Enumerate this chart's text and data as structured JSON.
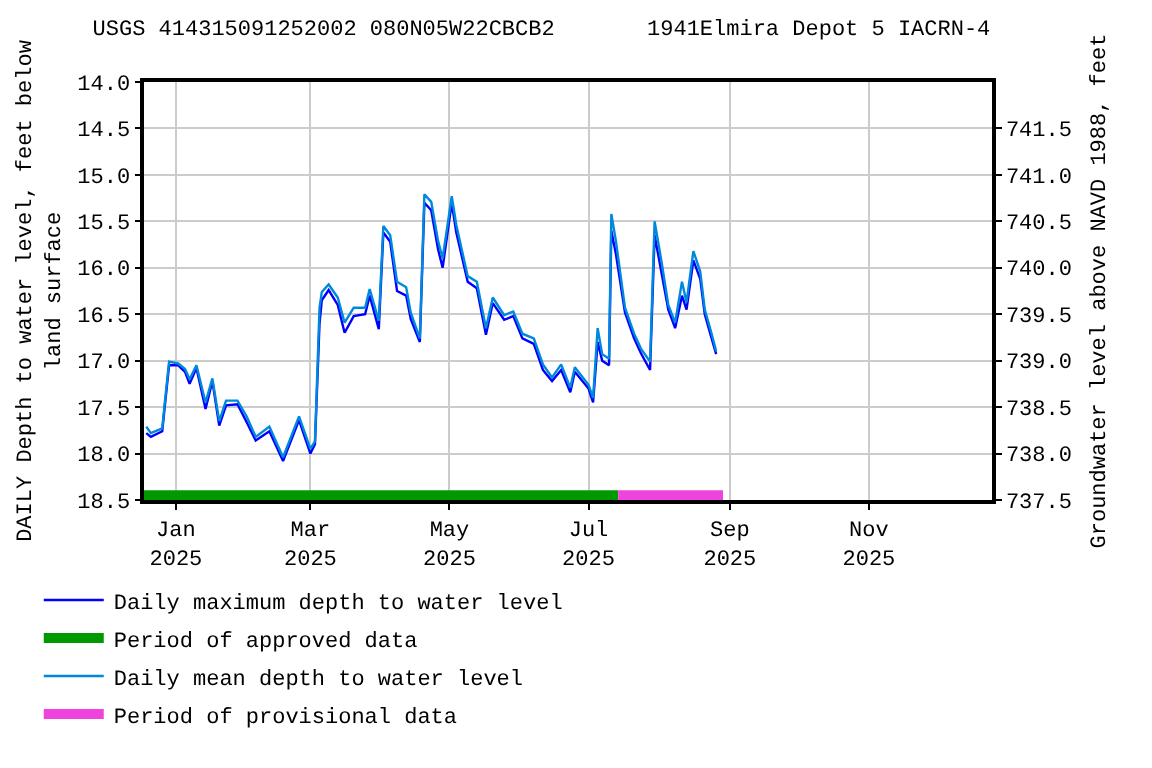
{
  "chart_data": {
    "type": "line",
    "title": "USGS 414315091252002 080N05W22CBCB2       1941Elmira Depot 5 IACRN-4",
    "ylabel": "DAILY Depth to water level, feet below\nland surface",
    "y2label": "Groundwater level above NAVD 1988, feet",
    "xlim": [
      "2024-12-18",
      "2025-12-25"
    ],
    "xticks": [
      {
        "value": "2025-01-01",
        "label": "Jan\n2025"
      },
      {
        "value": "2025-03-01",
        "label": "Mar\n2025"
      },
      {
        "value": "2025-05-01",
        "label": "May\n2025"
      },
      {
        "value": "2025-07-01",
        "label": "Jul\n2025"
      },
      {
        "value": "2025-09-01",
        "label": "Sep\n2025"
      },
      {
        "value": "2025-11-01",
        "label": "Nov\n2025"
      }
    ],
    "ylim": [
      18.5,
      14.0
    ],
    "yticks": [
      {
        "value": 14.0,
        "label": "14.0"
      },
      {
        "value": 14.5,
        "label": "14.5"
      },
      {
        "value": 15.0,
        "label": "15.0"
      },
      {
        "value": 15.5,
        "label": "15.5"
      },
      {
        "value": 16.0,
        "label": "16.0"
      },
      {
        "value": 16.5,
        "label": "16.5"
      },
      {
        "value": 17.0,
        "label": "17.0"
      },
      {
        "value": 17.5,
        "label": "17.5"
      },
      {
        "value": 18.0,
        "label": "18.0"
      },
      {
        "value": 18.5,
        "label": "18.5"
      }
    ],
    "y2lim": [
      737.5,
      742.0
    ],
    "y2ticks": [
      737.5,
      {
        "value": 738.0,
        "label": "738.0"
      },
      738.5,
      {
        "value": 739.0,
        "label": "739.0"
      },
      739.5,
      {
        "value": 740.0,
        "label": "740.0"
      },
      740.5,
      {
        "value": 741.0,
        "label": "741.0"
      },
      741.5
    ],
    "grid": true,
    "legend": "bottom",
    "marker": "none",
    "line_style": "solid",
    "series": [
      {
        "name": "Daily maximum depth to water level",
        "color": "#0000ff",
        "x": [
          "2024-12-19",
          "2024-12-21",
          "2024-12-26",
          "2024-12-27",
          "2024-12-29",
          "2025-01-02",
          "2025-01-05",
          "2025-01-07",
          "2025-01-10",
          "2025-01-14",
          "2025-01-17",
          "2025-01-20",
          "2025-01-23",
          "2025-01-28",
          "2025-02-01",
          "2025-02-05",
          "2025-02-11",
          "2025-02-17",
          "2025-02-24",
          "2025-03-01",
          "2025-03-03",
          "2025-03-05",
          "2025-03-06",
          "2025-03-09",
          "2025-03-13",
          "2025-03-16",
          "2025-03-20",
          "2025-03-25",
          "2025-03-27",
          "2025-03-31",
          "2025-04-02",
          "2025-04-05",
          "2025-04-08",
          "2025-04-12",
          "2025-04-14",
          "2025-04-18",
          "2025-04-20",
          "2025-04-23",
          "2025-04-26",
          "2025-04-28",
          "2025-05-02",
          "2025-05-04",
          "2025-05-09",
          "2025-05-13",
          "2025-05-17",
          "2025-05-20",
          "2025-05-25",
          "2025-05-29",
          "2025-06-02",
          "2025-06-07",
          "2025-06-11",
          "2025-06-15",
          "2025-06-19",
          "2025-06-23",
          "2025-06-25",
          "2025-07-01",
          "2025-07-03",
          "2025-07-05",
          "2025-07-07",
          "2025-07-10",
          "2025-07-11",
          "2025-07-13",
          "2025-07-17",
          "2025-07-21",
          "2025-07-24",
          "2025-07-28",
          "2025-07-30",
          "2025-08-02",
          "2025-08-05",
          "2025-08-08",
          "2025-08-11",
          "2025-08-13",
          "2025-08-16",
          "2025-08-19",
          "2025-08-21",
          "2025-08-24",
          "2025-08-26"
        ],
        "values": [
          17.78,
          17.82,
          17.76,
          17.52,
          17.05,
          17.05,
          17.12,
          17.25,
          17.08,
          17.52,
          17.22,
          17.7,
          17.48,
          17.47,
          17.66,
          17.86,
          17.76,
          18.08,
          17.64,
          18.0,
          17.9,
          16.6,
          16.35,
          16.24,
          16.4,
          16.7,
          16.52,
          16.5,
          16.3,
          16.66,
          15.62,
          15.72,
          16.25,
          16.3,
          16.55,
          16.8,
          15.3,
          15.38,
          15.8,
          16.0,
          15.3,
          15.62,
          16.15,
          16.22,
          16.72,
          16.38,
          16.56,
          16.52,
          16.76,
          16.82,
          17.1,
          17.22,
          17.1,
          17.34,
          17.12,
          17.3,
          17.45,
          16.8,
          17.0,
          17.05,
          15.6,
          15.85,
          16.48,
          16.76,
          16.92,
          17.1,
          15.65,
          16.05,
          16.45,
          16.65,
          16.3,
          16.45,
          15.92,
          16.12,
          16.5,
          16.76,
          16.93
        ]
      },
      {
        "name": "Period of approved data",
        "color": "#009900",
        "x": [
          "2024-12-18",
          "2025-07-14"
        ],
        "values": [
          18.45,
          18.45
        ]
      },
      {
        "name": "Daily mean depth to water level",
        "color": "#0088dd",
        "x": [
          "2024-12-19",
          "2024-12-21",
          "2024-12-26",
          "2024-12-27",
          "2024-12-29",
          "2025-01-02",
          "2025-01-05",
          "2025-01-07",
          "2025-01-10",
          "2025-01-14",
          "2025-01-17",
          "2025-01-20",
          "2025-01-23",
          "2025-01-28",
          "2025-02-01",
          "2025-02-05",
          "2025-02-11",
          "2025-02-17",
          "2025-02-24",
          "2025-03-01",
          "2025-03-03",
          "2025-03-05",
          "2025-03-06",
          "2025-03-09",
          "2025-03-13",
          "2025-03-16",
          "2025-03-20",
          "2025-03-25",
          "2025-03-27",
          "2025-03-31",
          "2025-04-02",
          "2025-04-05",
          "2025-04-08",
          "2025-04-12",
          "2025-04-14",
          "2025-04-18",
          "2025-04-20",
          "2025-04-23",
          "2025-04-26",
          "2025-04-28",
          "2025-05-02",
          "2025-05-04",
          "2025-05-09",
          "2025-05-13",
          "2025-05-17",
          "2025-05-20",
          "2025-05-25",
          "2025-05-29",
          "2025-06-02",
          "2025-06-07",
          "2025-06-11",
          "2025-06-15",
          "2025-06-19",
          "2025-06-23",
          "2025-06-25",
          "2025-07-01",
          "2025-07-03",
          "2025-07-05",
          "2025-07-07",
          "2025-07-10",
          "2025-07-11",
          "2025-07-13",
          "2025-07-17",
          "2025-07-21",
          "2025-07-24",
          "2025-07-28",
          "2025-07-30",
          "2025-08-02",
          "2025-08-05",
          "2025-08-08",
          "2025-08-11",
          "2025-08-13",
          "2025-08-16",
          "2025-08-19",
          "2025-08-21",
          "2025-08-24",
          "2025-08-26"
        ],
        "values": [
          17.71,
          17.78,
          17.73,
          17.48,
          17.01,
          17.03,
          17.09,
          17.2,
          17.05,
          17.45,
          17.19,
          17.65,
          17.43,
          17.43,
          17.6,
          17.82,
          17.71,
          18.04,
          17.6,
          17.95,
          17.87,
          16.43,
          16.26,
          16.18,
          16.32,
          16.59,
          16.43,
          16.43,
          16.23,
          16.57,
          15.55,
          15.65,
          16.15,
          16.21,
          16.48,
          16.76,
          15.21,
          15.29,
          15.71,
          15.9,
          15.23,
          15.54,
          16.09,
          16.15,
          16.65,
          16.32,
          16.51,
          16.47,
          16.71,
          16.76,
          17.04,
          17.18,
          17.04,
          17.29,
          17.07,
          17.26,
          17.4,
          16.65,
          16.93,
          16.98,
          15.42,
          15.71,
          16.43,
          16.71,
          16.87,
          17.01,
          15.5,
          15.93,
          16.4,
          16.59,
          16.15,
          16.37,
          15.82,
          16.04,
          16.45,
          16.71,
          16.9
        ]
      },
      {
        "name": "Period of provisional data",
        "color": "#ee44dd",
        "x": [
          "2025-07-14",
          "2025-08-29"
        ],
        "values": [
          18.45,
          18.45
        ]
      }
    ]
  }
}
